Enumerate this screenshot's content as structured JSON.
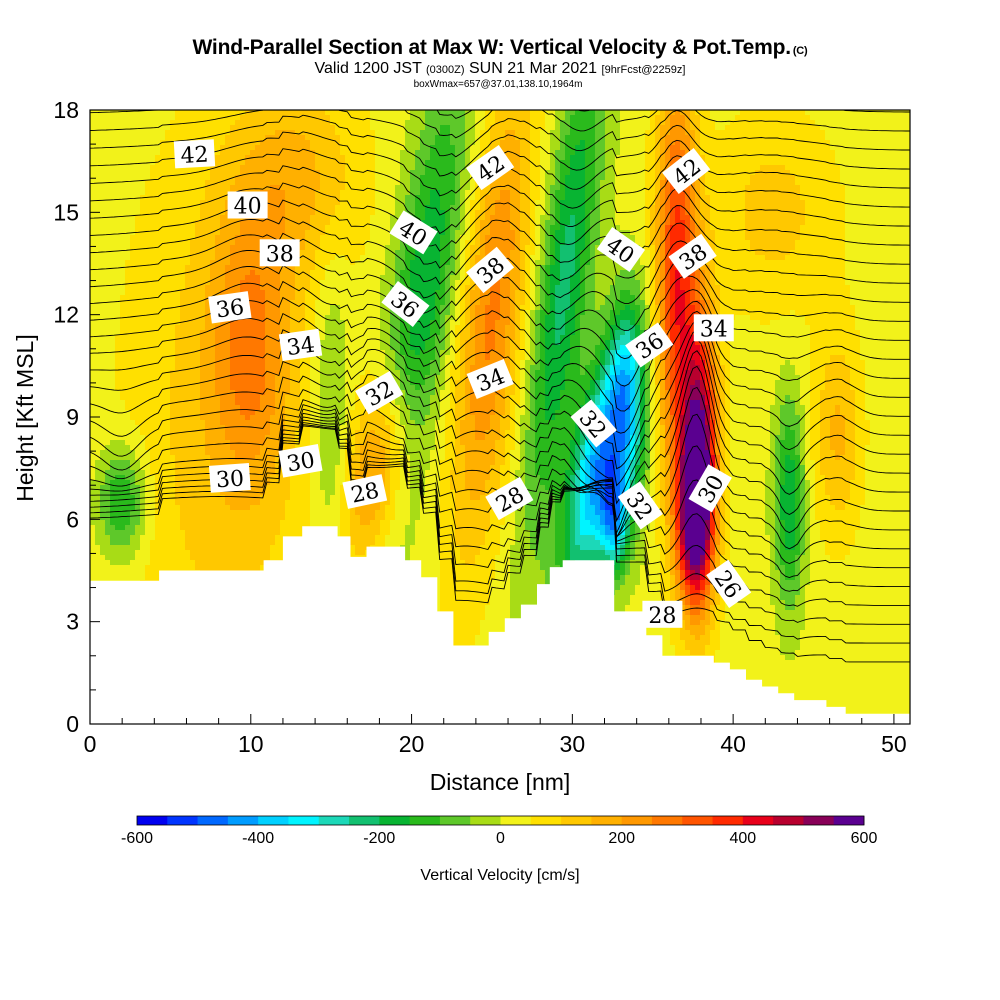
{
  "title": {
    "main": "Wind-Parallel Section at Max W: Vertical Velocity & Pot.Temp.",
    "copyright": "(C)",
    "valid_prefix": "Valid 1200 JST",
    "valid_utc": "(0300Z)",
    "valid_date": "SUN 21 Mar 2021",
    "forecast": "[9hrFcst@2259z]",
    "boxwmax": "boxWmax=657@37.01,138.10,1964m"
  },
  "chart_data": {
    "type": "heatmap",
    "xlabel": "Distance [nm]",
    "ylabel": "Height [Kft MSL]",
    "xlim": [
      0,
      51
    ],
    "ylim": [
      0,
      18
    ],
    "x_ticks": [
      "0",
      "10",
      "20",
      "30",
      "40",
      "50"
    ],
    "y_ticks": [
      "0",
      "3",
      "6",
      "9",
      "12",
      "15",
      "18"
    ],
    "terrain_kft": [
      [
        0,
        4.2
      ],
      [
        4.3,
        4.2
      ],
      [
        4.3,
        4.5
      ],
      [
        10.8,
        4.5
      ],
      [
        10.8,
        4.8
      ],
      [
        12,
        4.8
      ],
      [
        12,
        5.5
      ],
      [
        13.2,
        5.5
      ],
      [
        13.2,
        5.8
      ],
      [
        15.4,
        5.8
      ],
      [
        15.4,
        5.5
      ],
      [
        16.2,
        5.5
      ],
      [
        16.2,
        4.9
      ],
      [
        17.2,
        4.9
      ],
      [
        17.2,
        5.2
      ],
      [
        19.6,
        5.2
      ],
      [
        19.6,
        4.8
      ],
      [
        20.6,
        4.8
      ],
      [
        20.6,
        4.3
      ],
      [
        21.6,
        4.3
      ],
      [
        21.6,
        3.3
      ],
      [
        22.6,
        3.3
      ],
      [
        22.6,
        2.3
      ],
      [
        24.8,
        2.3
      ],
      [
        24.8,
        2.7
      ],
      [
        25.8,
        2.7
      ],
      [
        25.8,
        3.1
      ],
      [
        26.8,
        3.1
      ],
      [
        26.8,
        3.5
      ],
      [
        27.8,
        3.5
      ],
      [
        27.8,
        4.1
      ],
      [
        28.6,
        4.1
      ],
      [
        28.6,
        4.6
      ],
      [
        29.4,
        4.6
      ],
      [
        29.4,
        4.8
      ],
      [
        32.6,
        4.8
      ],
      [
        32.6,
        3.3
      ],
      [
        34.6,
        3.3
      ],
      [
        34.6,
        2.6
      ],
      [
        35.6,
        2.6
      ],
      [
        35.6,
        2.0
      ],
      [
        38.8,
        2.0
      ],
      [
        38.8,
        1.8
      ],
      [
        39.8,
        1.8
      ],
      [
        39.8,
        1.6
      ],
      [
        40.8,
        1.6
      ],
      [
        40.8,
        1.3
      ],
      [
        41.8,
        1.3
      ],
      [
        41.8,
        1.1
      ],
      [
        42.8,
        1.1
      ],
      [
        42.8,
        0.9
      ],
      [
        43.8,
        0.9
      ],
      [
        43.8,
        0.7
      ],
      [
        45.8,
        0.7
      ],
      [
        45.8,
        0.5
      ],
      [
        47,
        0.5
      ],
      [
        47,
        0.3
      ],
      [
        51,
        0.3
      ]
    ],
    "velocity_features": [
      {
        "x": 8,
        "y": 8.5,
        "rx": 6,
        "ry": 9,
        "w": 100
      },
      {
        "x": 10,
        "y": 11,
        "rx": 2.5,
        "ry": 4,
        "w": 180
      },
      {
        "x": 2,
        "y": 6.5,
        "rx": 1.5,
        "ry": 1.6,
        "w": -200
      },
      {
        "x": 13,
        "y": 16,
        "rx": 4,
        "ry": 3,
        "w": 130
      },
      {
        "x": 15,
        "y": 9,
        "rx": 1.2,
        "ry": 5,
        "w": -100
      },
      {
        "x": 18,
        "y": 7.5,
        "rx": 2,
        "ry": 3,
        "w": 260,
        "tilt": 0.3
      },
      {
        "x": 20.5,
        "y": 12,
        "rx": 2,
        "ry": 7,
        "w": -230,
        "tilt": 0.3
      },
      {
        "x": 25,
        "y": 12,
        "rx": 2,
        "ry": 7,
        "w": 240,
        "tilt": 0.2
      },
      {
        "x": 29.5,
        "y": 13,
        "rx": 1.6,
        "ry": 7,
        "w": -240,
        "tilt": 0.25
      },
      {
        "x": 31.5,
        "y": 7.5,
        "rx": 1.6,
        "ry": 3.5,
        "w": -430,
        "tilt": 0.35
      },
      {
        "x": 32.6,
        "y": 6,
        "rx": 0.9,
        "ry": 1.6,
        "w": -320
      },
      {
        "x": 33.5,
        "y": 9.2,
        "rx": 1.2,
        "ry": 3,
        "w": -300
      },
      {
        "x": 36.5,
        "y": 13,
        "rx": 1.3,
        "ry": 6,
        "w": 360
      },
      {
        "x": 38,
        "y": 8,
        "rx": 1.1,
        "ry": 4,
        "w": 460
      },
      {
        "x": 37.5,
        "y": 6,
        "rx": 1.1,
        "ry": 2.5,
        "w": 420
      },
      {
        "x": 43.5,
        "y": 6.5,
        "rx": 0.9,
        "ry": 3,
        "w": -220
      },
      {
        "x": 46.5,
        "y": 8.5,
        "rx": 1.5,
        "ry": 3,
        "w": 140
      },
      {
        "x": 42.5,
        "y": 15,
        "rx": 4,
        "ry": 3,
        "w": 100
      }
    ],
    "isentrope_labels": [
      {
        "text": "42",
        "x": 6.5,
        "y": 16.7,
        "angle": -3
      },
      {
        "text": "40",
        "x": 9.8,
        "y": 15.2,
        "angle": 0
      },
      {
        "text": "38",
        "x": 11.8,
        "y": 13.8,
        "angle": 0
      },
      {
        "text": "36",
        "x": 8.7,
        "y": 12.2,
        "angle": -8
      },
      {
        "text": "34",
        "x": 13.1,
        "y": 11.1,
        "angle": -8
      },
      {
        "text": "32",
        "x": 18,
        "y": 9.7,
        "angle": -30
      },
      {
        "text": "30",
        "x": 13.1,
        "y": 7.7,
        "angle": -10
      },
      {
        "text": "30",
        "x": 8.7,
        "y": 7.2,
        "angle": -4
      },
      {
        "text": "28",
        "x": 17.1,
        "y": 6.8,
        "angle": -12
      },
      {
        "text": "40",
        "x": 20.1,
        "y": 14.4,
        "angle": 32
      },
      {
        "text": "36",
        "x": 19.6,
        "y": 12.3,
        "angle": 38
      },
      {
        "text": "42",
        "x": 24.9,
        "y": 16.3,
        "angle": -35
      },
      {
        "text": "38",
        "x": 24.9,
        "y": 13.3,
        "angle": -40
      },
      {
        "text": "34",
        "x": 24.9,
        "y": 10.1,
        "angle": -22
      },
      {
        "text": "28",
        "x": 26.1,
        "y": 6.6,
        "angle": -30
      },
      {
        "text": "40",
        "x": 33,
        "y": 13.9,
        "angle": 35
      },
      {
        "text": "36",
        "x": 34.8,
        "y": 11.1,
        "angle": -35
      },
      {
        "text": "32",
        "x": 31.3,
        "y": 8.8,
        "angle": 50
      },
      {
        "text": "32",
        "x": 34.2,
        "y": 6.4,
        "angle": 55
      },
      {
        "text": "28",
        "x": 35.6,
        "y": 3.2,
        "angle": 0
      },
      {
        "text": "42",
        "x": 37.1,
        "y": 16.2,
        "angle": -38
      },
      {
        "text": "38",
        "x": 37.5,
        "y": 13.7,
        "angle": -35
      },
      {
        "text": "34",
        "x": 38.8,
        "y": 11.6,
        "angle": 0
      },
      {
        "text": "30",
        "x": 38.6,
        "y": 6.9,
        "angle": -60
      },
      {
        "text": "26",
        "x": 39.7,
        "y": 4.1,
        "angle": 55
      }
    ],
    "colorbar": {
      "label": "Vertical Velocity [cm/s]",
      "ticks": [
        "-600",
        "-400",
        "-200",
        "0",
        "200",
        "400",
        "600"
      ],
      "colors": [
        "#0000f0",
        "#0034ff",
        "#0068ff",
        "#009cff",
        "#00d0ff",
        "#00f4ff",
        "#1cd8b8",
        "#12c070",
        "#08b432",
        "#2aba1c",
        "#5ec82a",
        "#a8dc16",
        "#f2f21a",
        "#ffe000",
        "#ffc800",
        "#ffb000",
        "#ff9800",
        "#ff7800",
        "#ff5400",
        "#ff2a00",
        "#e8001a",
        "#b8002e",
        "#880058",
        "#5a0090"
      ]
    }
  }
}
